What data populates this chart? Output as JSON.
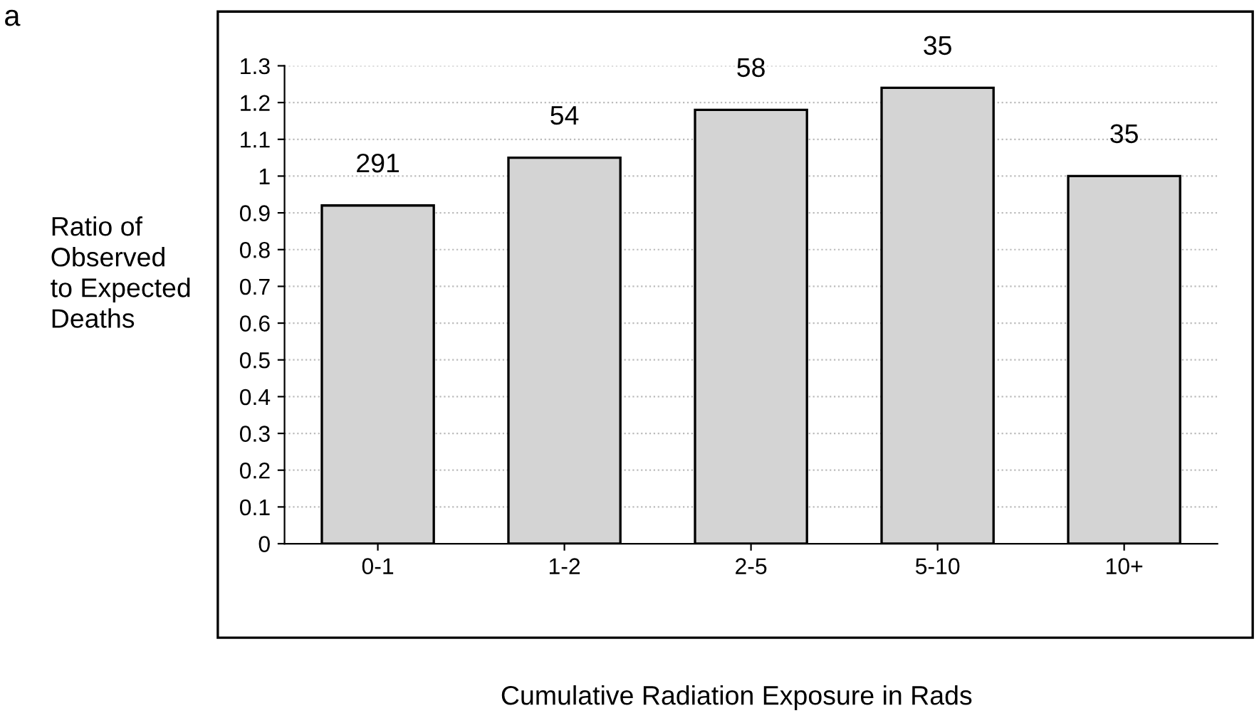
{
  "chart_data": {
    "type": "bar",
    "categories": [
      "0-1",
      "1-2",
      "2-5",
      "5-10",
      "10+"
    ],
    "values": [
      0.92,
      1.05,
      1.18,
      1.24,
      1.0
    ],
    "color": "#d4d4d4",
    "ylabel": "Ratio of\nObserved\nto Expected\nDeaths",
    "xlabel": "Cumulative Radiation Exposure in Rads",
    "ylim": [
      0,
      1.3
    ],
    "yticks": [
      0,
      0.1,
      0.2,
      0.3,
      0.4,
      0.5,
      0.6,
      0.7,
      0.8,
      0.9,
      1,
      1.1,
      1.2,
      1.3
    ],
    "grid": "y",
    "legend": false,
    "annotations": [
      "a",
      {
        "text": "291",
        "x": "0-1",
        "y": 0.92
      },
      {
        "text": "54",
        "x": "1-2",
        "y": 1.05
      },
      {
        "text": "58",
        "x": "2-5",
        "y": 1.18
      },
      {
        "text": "35",
        "x": "5-10",
        "y": 1.24
      },
      {
        "text": "35",
        "x": "10+",
        "y": 1.0
      }
    ]
  }
}
